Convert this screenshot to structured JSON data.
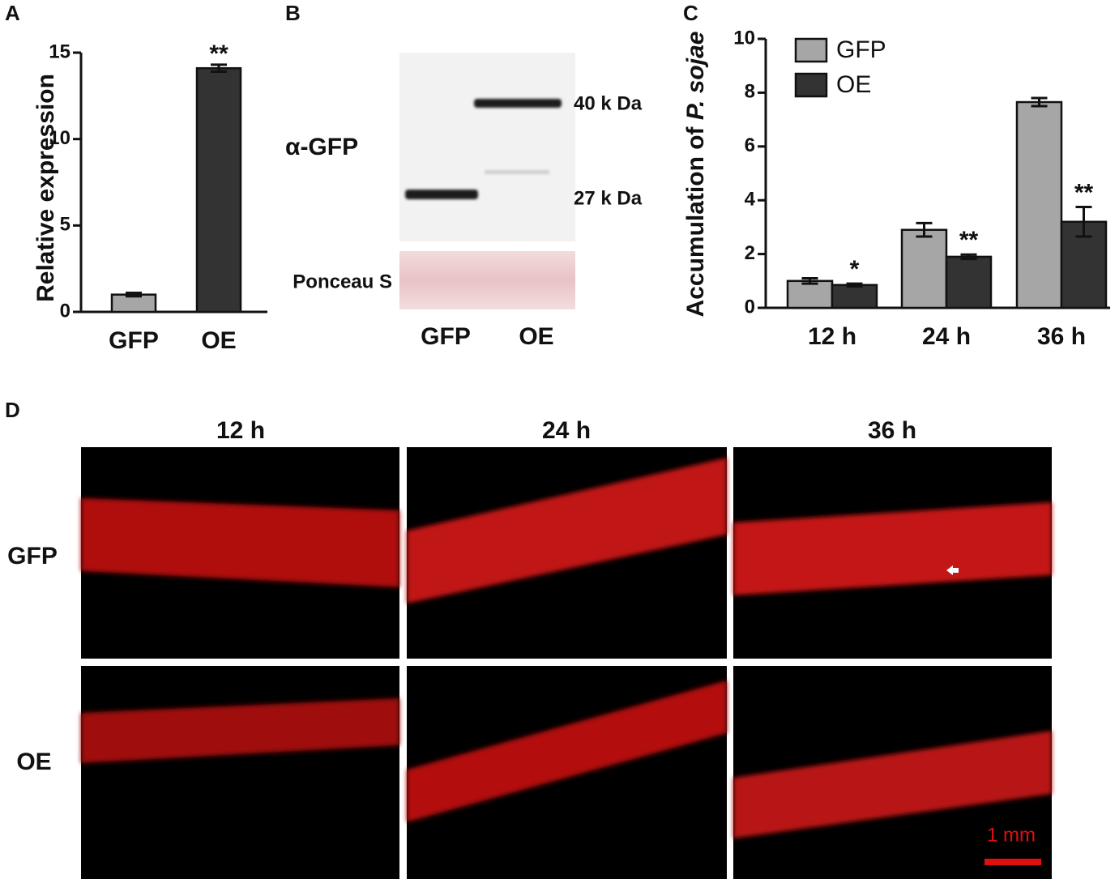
{
  "chart_data": [
    {
      "type": "bar",
      "panel": "A",
      "ylabel": "Relative expression",
      "categories": [
        "GFP",
        "OE"
      ],
      "values": [
        1,
        14.1
      ],
      "errors": [
        0.1,
        0.2
      ],
      "colors": [
        "#a6a6a6",
        "#333333"
      ],
      "annotations": [
        null,
        "**"
      ],
      "ylim": [
        0,
        15
      ],
      "yticks": [
        0,
        5,
        10,
        15
      ]
    },
    {
      "type": "grouped_bar",
      "panel": "C",
      "ylabel": "Accumulation of",
      "ylabel_italic": "P. sojae",
      "categories": [
        "12 h",
        "24 h",
        "36 h"
      ],
      "series": [
        {
          "name": "GFP",
          "color": "#a6a6a6",
          "values": [
            1,
            2.9,
            7.65
          ],
          "errors": [
            0.1,
            0.25,
            0.15
          ],
          "annotations": [
            null,
            null,
            null
          ]
        },
        {
          "name": "OE",
          "color": "#333333",
          "values": [
            0.85,
            1.9,
            3.2
          ],
          "errors": [
            0.05,
            0.08,
            0.55
          ],
          "annotations": [
            "*",
            "**",
            "**"
          ]
        }
      ],
      "ylim": [
        0,
        10
      ],
      "yticks": [
        0,
        2,
        4,
        6,
        8,
        10
      ],
      "legend": "upper left"
    }
  ],
  "blot": {
    "panel": "B",
    "antibody": "α-GFP",
    "markers": [
      "40 k Da",
      "27 k Da"
    ],
    "stain": "Ponceau S",
    "lanes": [
      "GFP",
      "OE"
    ]
  },
  "micrographs": {
    "panel": "D",
    "columns": [
      "12 h",
      "24 h",
      "36 h"
    ],
    "rows": [
      "GFP",
      "OE"
    ],
    "scale_bar": "1 mm"
  }
}
